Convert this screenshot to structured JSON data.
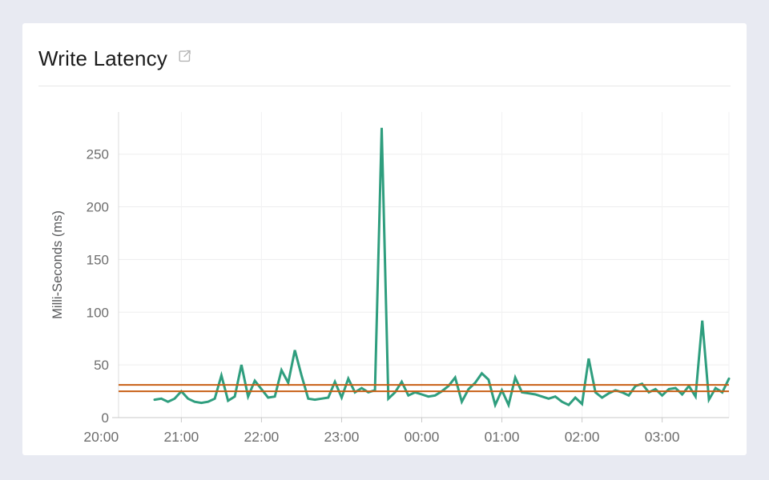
{
  "page": {
    "background_color": "#e8eaf2"
  },
  "card": {
    "title": "Write Latency",
    "title_icon": "external-link-icon",
    "background_color": "#ffffff"
  },
  "chart_data": {
    "type": "line",
    "title": "Write Latency",
    "xlabel": "",
    "ylabel": "Milli-Seconds (ms)",
    "ylim": [
      0,
      290
    ],
    "yticks": [
      0,
      50,
      100,
      150,
      200,
      250
    ],
    "xticks": [
      "20:00",
      "21:00",
      "22:00",
      "23:00",
      "00:00",
      "01:00",
      "02:00",
      "03:00"
    ],
    "grid": true,
    "legend": false,
    "x": [
      "20:40",
      "20:45",
      "20:50",
      "20:55",
      "21:00",
      "21:05",
      "21:10",
      "21:15",
      "21:20",
      "21:25",
      "21:30",
      "21:35",
      "21:40",
      "21:45",
      "21:50",
      "21:55",
      "22:00",
      "22:05",
      "22:10",
      "22:15",
      "22:20",
      "22:25",
      "22:30",
      "22:35",
      "22:40",
      "22:45",
      "22:50",
      "22:55",
      "23:00",
      "23:05",
      "23:10",
      "23:15",
      "23:20",
      "23:25",
      "23:30",
      "23:35",
      "23:40",
      "23:45",
      "23:50",
      "23:55",
      "00:00",
      "00:05",
      "00:10",
      "00:15",
      "00:20",
      "00:25",
      "00:30",
      "00:35",
      "00:40",
      "00:45",
      "00:50",
      "00:55",
      "01:00",
      "01:05",
      "01:10",
      "01:15",
      "01:20",
      "01:25",
      "01:30",
      "01:35",
      "01:40",
      "01:45",
      "01:50",
      "01:55",
      "02:00",
      "02:05",
      "02:10",
      "02:15",
      "02:20",
      "02:25",
      "02:30",
      "02:35",
      "02:40",
      "02:45",
      "02:50",
      "02:55",
      "03:00",
      "03:05",
      "03:10",
      "03:15",
      "03:20",
      "03:25",
      "03:30",
      "03:35",
      "03:40",
      "03:45",
      "03:50"
    ],
    "series": [
      {
        "name": "Write Latency",
        "color": "#2f9e7e",
        "values": [
          17,
          18,
          15,
          18,
          25,
          18,
          15,
          14,
          15,
          18,
          40,
          16,
          20,
          50,
          20,
          35,
          27,
          19,
          20,
          45,
          33,
          64,
          40,
          18,
          17,
          18,
          19,
          34,
          19,
          37,
          24,
          28,
          24,
          26,
          275,
          18,
          24,
          34,
          21,
          24,
          22,
          20,
          21,
          25,
          30,
          38,
          15,
          27,
          33,
          42,
          36,
          12,
          26,
          12,
          38,
          24,
          23,
          22,
          20,
          18,
          20,
          15,
          12,
          19,
          13,
          56,
          24,
          19,
          23,
          26,
          24,
          21,
          30,
          32,
          24,
          27,
          21,
          27,
          28,
          22,
          30,
          20,
          92,
          17,
          28,
          24,
          37
        ]
      }
    ],
    "reference_lines": [
      {
        "value": 31,
        "color": "#c85f15"
      },
      {
        "value": 25,
        "color": "#c85f15"
      }
    ],
    "colors": {
      "grid": "#ededee",
      "vgrid": "#f2f2f3",
      "axis_line": "#c9c9c9",
      "y_axis_line": "#dcdcdc",
      "tick_text": "#6e6e6e",
      "axis_title_text": "#58595b",
      "icon": "#b4b4b4"
    }
  }
}
